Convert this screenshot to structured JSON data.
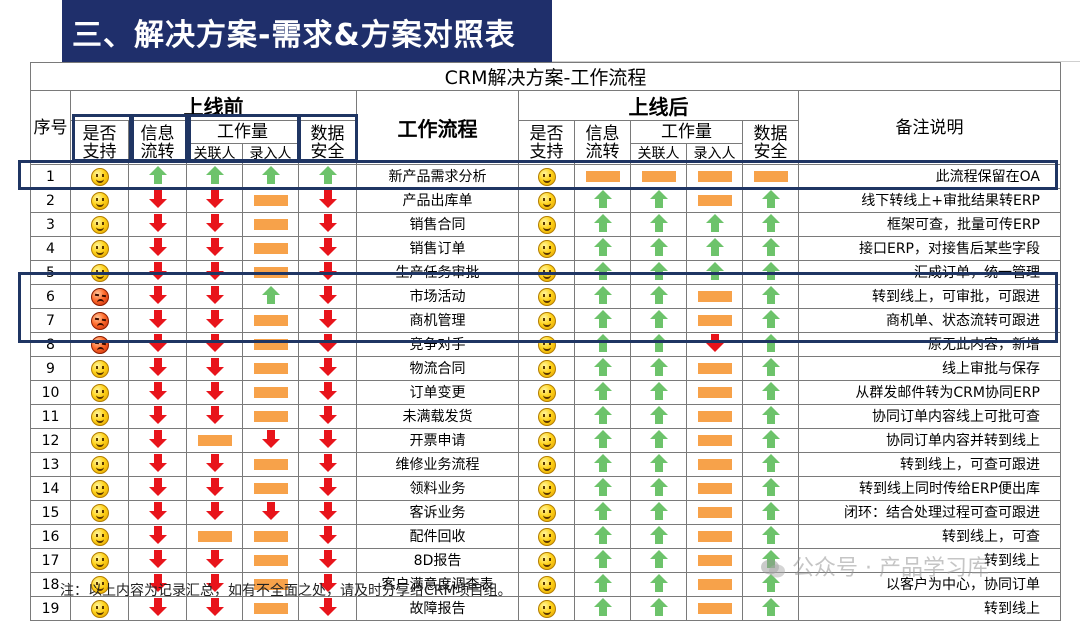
{
  "slide_title": "三、解决方案-需求&方案对照表",
  "table_title": "CRM解决方案-工作流程",
  "headers": {
    "before": "上线前",
    "after": "上线后",
    "seq": "序号",
    "support": [
      "是否",
      "支持"
    ],
    "info_flow": [
      "信息",
      "流转"
    ],
    "workload": "工作量",
    "link_person": "关联人",
    "entry_person": "录入人",
    "data_security": [
      "数据",
      "安全"
    ],
    "workflow": "工作流程",
    "notes": "备注说明"
  },
  "icons": {
    "smile": "smiley-face-icon",
    "angry": "angry-face-icon",
    "up": "green-up-arrow-icon",
    "down": "red-down-arrow-icon",
    "bar": "orange-bar-icon"
  },
  "colors": {
    "banner": "#1f2f6b",
    "green": "#6dc36b",
    "red": "#e8141b",
    "orange": "#f7a24a",
    "highlight_border": "#1f3563"
  },
  "rows": [
    {
      "n": "1",
      "flow": "新产品需求分析",
      "note": "此流程保留在OA",
      "before": [
        "smile",
        "up",
        "up",
        "up",
        "up"
      ],
      "after": [
        "smile",
        "bar",
        "bar",
        "bar",
        "bar"
      ]
    },
    {
      "n": "2",
      "flow": "产品出库单",
      "note": "线下转线上+审批结果转ERP",
      "before": [
        "smile",
        "down",
        "down",
        "bar",
        "down"
      ],
      "after": [
        "smile",
        "up",
        "up",
        "bar",
        "up"
      ]
    },
    {
      "n": "3",
      "flow": "销售合同",
      "note": "框架可查，批量可传ERP",
      "before": [
        "smile",
        "down",
        "down",
        "bar",
        "down"
      ],
      "after": [
        "smile",
        "up",
        "up",
        "up",
        "up"
      ]
    },
    {
      "n": "4",
      "flow": "销售订单",
      "note": "接口ERP，对接售后某些字段",
      "before": [
        "smile",
        "down",
        "down",
        "bar",
        "down"
      ],
      "after": [
        "smile",
        "up",
        "up",
        "up",
        "up"
      ]
    },
    {
      "n": "5",
      "flow": "生产任务审批",
      "note": "汇成订单，统一管理",
      "before": [
        "smile",
        "down",
        "down",
        "bar",
        "down"
      ],
      "after": [
        "smile",
        "up",
        "up",
        "up",
        "up"
      ]
    },
    {
      "n": "6",
      "flow": "市场活动",
      "note": "转到线上，可审批，可跟进",
      "before": [
        "angry",
        "down",
        "down",
        "up",
        "down"
      ],
      "after": [
        "smile",
        "up",
        "up",
        "bar",
        "up"
      ]
    },
    {
      "n": "7",
      "flow": "商机管理",
      "note": "商机单、状态流转可跟进",
      "before": [
        "angry",
        "down",
        "down",
        "bar",
        "down"
      ],
      "after": [
        "smile",
        "up",
        "up",
        "bar",
        "up"
      ]
    },
    {
      "n": "8",
      "flow": "竞争对手",
      "note": "原无此内容，新增",
      "before": [
        "angry",
        "down",
        "down",
        "bar",
        "down"
      ],
      "after": [
        "smile",
        "up",
        "up",
        "down",
        "up"
      ]
    },
    {
      "n": "9",
      "flow": "物流合同",
      "note": "线上审批与保存",
      "before": [
        "smile",
        "down",
        "down",
        "bar",
        "down"
      ],
      "after": [
        "smile",
        "up",
        "up",
        "bar",
        "up"
      ]
    },
    {
      "n": "10",
      "flow": "订单变更",
      "note": "从群发邮件转为CRM协同ERP",
      "before": [
        "smile",
        "down",
        "down",
        "bar",
        "down"
      ],
      "after": [
        "smile",
        "up",
        "up",
        "bar",
        "up"
      ]
    },
    {
      "n": "11",
      "flow": "未满载发货",
      "note": "协同订单内容线上可批可查",
      "before": [
        "smile",
        "down",
        "down",
        "bar",
        "down"
      ],
      "after": [
        "smile",
        "up",
        "up",
        "bar",
        "up"
      ]
    },
    {
      "n": "12",
      "flow": "开票申请",
      "note": "协同订单内容并转到线上",
      "before": [
        "smile",
        "down",
        "bar",
        "down",
        "down"
      ],
      "after": [
        "smile",
        "up",
        "up",
        "bar",
        "up"
      ]
    },
    {
      "n": "13",
      "flow": "维修业务流程",
      "note": "转到线上，可查可跟进",
      "before": [
        "smile",
        "down",
        "down",
        "bar",
        "down"
      ],
      "after": [
        "smile",
        "up",
        "up",
        "bar",
        "up"
      ]
    },
    {
      "n": "14",
      "flow": "领料业务",
      "note": "转到线上同时传给ERP便出库",
      "before": [
        "smile",
        "down",
        "down",
        "bar",
        "down"
      ],
      "after": [
        "smile",
        "up",
        "up",
        "bar",
        "up"
      ]
    },
    {
      "n": "15",
      "flow": "客诉业务",
      "note": "闭环：结合处理过程可查可跟进",
      "before": [
        "smile",
        "down",
        "down",
        "down",
        "down"
      ],
      "after": [
        "smile",
        "up",
        "up",
        "bar",
        "up"
      ]
    },
    {
      "n": "16",
      "flow": "配件回收",
      "note": "转到线上，可查",
      "before": [
        "smile",
        "down",
        "bar",
        "bar",
        "down"
      ],
      "after": [
        "smile",
        "up",
        "up",
        "bar",
        "up"
      ]
    },
    {
      "n": "17",
      "flow": "8D报告",
      "note": "转到线上",
      "before": [
        "smile",
        "down",
        "down",
        "bar",
        "down"
      ],
      "after": [
        "smile",
        "up",
        "up",
        "bar",
        "up"
      ]
    },
    {
      "n": "18",
      "flow": "客户满意度调查表",
      "note": "以客户为中心，协同订单",
      "before": [
        "smile",
        "down",
        "down",
        "bar",
        "down"
      ],
      "after": [
        "smile",
        "up",
        "up",
        "bar",
        "up"
      ]
    },
    {
      "n": "19",
      "flow": "故障报告",
      "note": "转到线上",
      "before": [
        "smile",
        "down",
        "down",
        "bar",
        "down"
      ],
      "after": [
        "smile",
        "up",
        "up",
        "bar",
        "up"
      ]
    }
  ],
  "footnote": "注：以上内容为记录汇总，如有不全面之处，请及时分享给CRM项目组。",
  "watermark": "公众号 · 产品学习库"
}
